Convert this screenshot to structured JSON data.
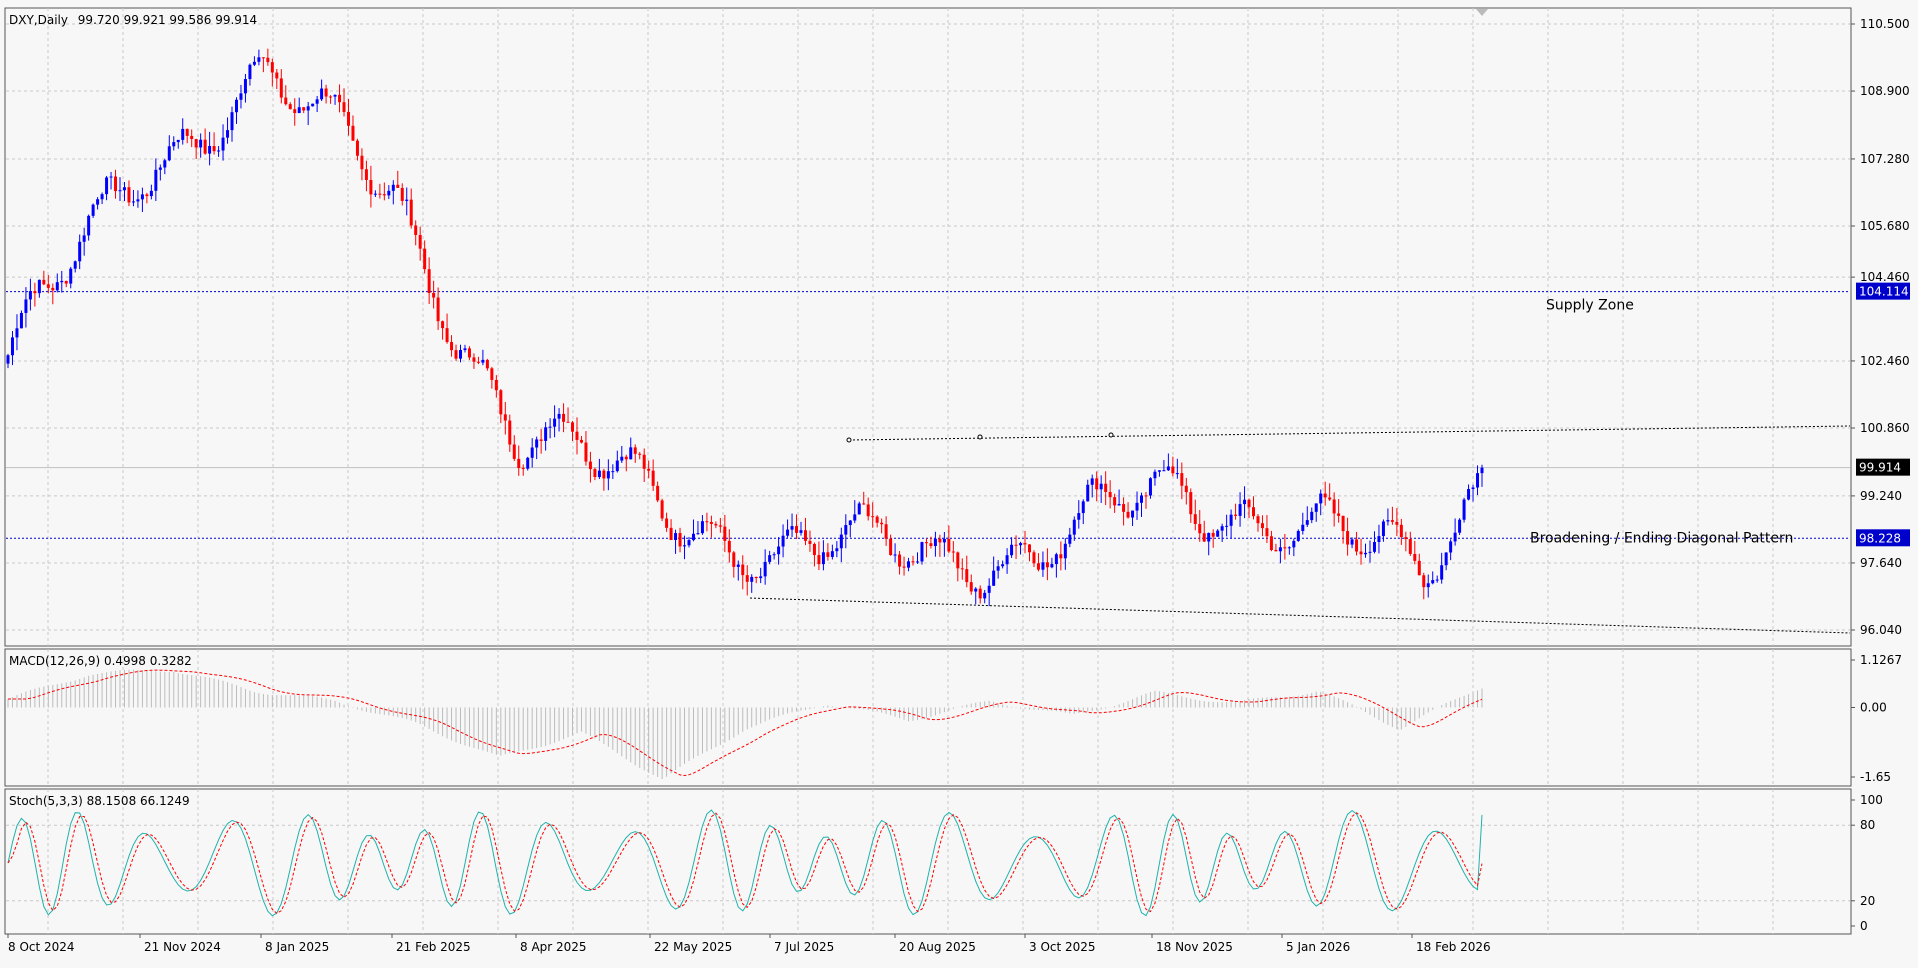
{
  "header": {
    "symbol": "DXY,Daily",
    "ohlc": "99.720 99.921 99.586 99.914"
  },
  "chart_data": [
    {
      "type": "candlestick",
      "panel": "price",
      "title": "DXY,Daily",
      "ylim": [
        95.0,
        111.0
      ],
      "price_ticks": [
        "110.500",
        "108.900",
        "107.280",
        "105.680",
        "104.460",
        "102.460",
        "100.860",
        "99.240",
        "97.640",
        "96.040"
      ],
      "x_labels": [
        "8 Oct 2024",
        "21 Nov 2024",
        "8 Jan 2025",
        "21 Feb 2025",
        "8 Apr 2025",
        "22 May 2025",
        "7 Jul 2025",
        "20 Aug 2025",
        "3 Oct 2025",
        "18 Nov 2025",
        "5 Jan 2026",
        "18 Feb 2026"
      ],
      "last_price": "99.914",
      "levels": [
        {
          "value": "104.114",
          "label": "Supply Zone",
          "color": "#0000cc"
        },
        {
          "value": "98.228",
          "label": "Broadening / Ending Diagonal Pattern",
          "color": "#0000cc"
        }
      ],
      "trendlines": [
        {
          "name": "upper-diagonal",
          "from": {
            "date": "7 Jul 2025",
            "price": 100.23
          },
          "to": {
            "date": "18 Nov 2025",
            "price": 100.48
          }
        },
        {
          "name": "lower-diagonal",
          "from": {
            "date": "22 May 2025",
            "price": 96.41
          },
          "to": {
            "date": "5 Jan 2026",
            "price": 95.95
          }
        }
      ],
      "anchors": [
        {
          "date": "8 Oct 2024",
          "close": 102.6
        },
        {
          "date": "21 Nov 2024",
          "close": 107.0
        },
        {
          "date": "8 Jan 2025",
          "close": 109.4
        },
        {
          "date": "21 Feb 2025",
          "close": 106.4
        },
        {
          "date": "8 Apr 2025",
          "close": 100.6
        },
        {
          "date": "22 May 2025",
          "close": 99.4
        },
        {
          "date": "7 Jul 2025",
          "close": 97.6
        },
        {
          "date": "20 Aug 2025",
          "close": 98.2
        },
        {
          "date": "3 Oct 2025",
          "close": 97.7
        },
        {
          "date": "18 Nov 2025",
          "close": 99.6
        },
        {
          "date": "5 Jan 2026",
          "close": 98.4
        },
        {
          "date": "18 Feb 2026",
          "close": 97.6
        },
        {
          "date": "last",
          "close": 99.914
        }
      ],
      "colors": {
        "up": "#0000ff",
        "down": "#ff0000"
      }
    },
    {
      "type": "histogram-line",
      "panel": "macd",
      "label": "MACD(12,26,9) 0.4998 0.3282",
      "ylim": [
        -1.65,
        1.1267
      ],
      "ticks": [
        "1.1267",
        "0.00",
        "-1.65"
      ],
      "anchors": [
        0.2,
        0.8,
        0.9,
        0.4,
        0.15,
        -0.4,
        -1.2,
        -0.6,
        -1.7,
        -0.5,
        0.1,
        -0.3,
        0.15,
        -0.2,
        0.35,
        0.1,
        0.4,
        -0.5,
        0.5
      ],
      "colors": {
        "hist": "#bbbbbb",
        "signal": "#ff0000"
      }
    },
    {
      "type": "line",
      "panel": "stochastic",
      "label": "Stoch(5,3,3) 88.1508 66.1249",
      "ylim": [
        0,
        100
      ],
      "ticks": [
        "100",
        "80",
        "20",
        "0"
      ],
      "colors": {
        "main": "#20b2aa",
        "signal": "#ff0000"
      }
    }
  ]
}
